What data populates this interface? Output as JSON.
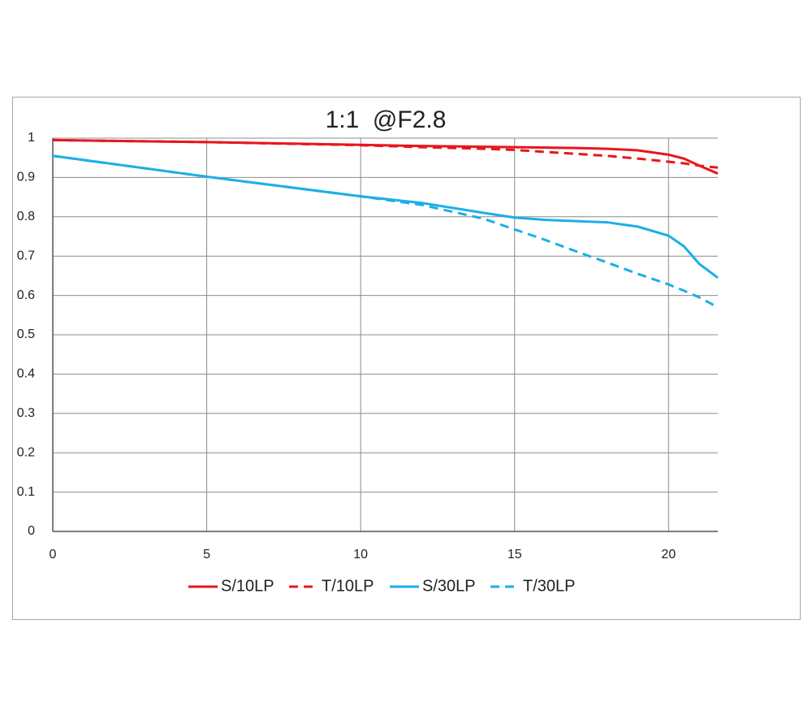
{
  "chart_data": {
    "type": "line",
    "title": "1:1  @F2.8",
    "x": [
      0,
      5,
      10,
      12,
      14,
      15,
      16,
      17,
      18,
      19,
      20,
      20.5,
      21,
      21.6
    ],
    "series": [
      {
        "name": "S/10LP",
        "color": "#e8161e",
        "dashed": false,
        "values": [
          0.995,
          0.99,
          0.983,
          0.98,
          0.978,
          0.977,
          0.976,
          0.975,
          0.973,
          0.969,
          0.958,
          0.948,
          0.93,
          0.91
        ]
      },
      {
        "name": "T/10LP",
        "color": "#e8161e",
        "dashed": true,
        "values": [
          0.995,
          0.99,
          0.982,
          0.977,
          0.973,
          0.97,
          0.965,
          0.96,
          0.955,
          0.948,
          0.94,
          0.936,
          0.93,
          0.925
        ]
      },
      {
        "name": "S/30LP",
        "color": "#1cafe6",
        "dashed": false,
        "values": [
          0.955,
          0.902,
          0.852,
          0.835,
          0.81,
          0.798,
          0.792,
          0.789,
          0.786,
          0.775,
          0.752,
          0.725,
          0.68,
          0.645
        ]
      },
      {
        "name": "T/30LP",
        "color": "#1cafe6",
        "dashed": true,
        "values": [
          0.955,
          0.902,
          0.852,
          0.83,
          0.795,
          0.768,
          0.741,
          0.712,
          0.684,
          0.655,
          0.628,
          0.612,
          0.595,
          0.57
        ]
      }
    ],
    "xlim": [
      0,
      21.6
    ],
    "xticks": [
      0,
      5,
      10,
      15,
      20
    ],
    "ylim": [
      0,
      1
    ],
    "yticks": [
      0,
      0.1,
      0.2,
      0.3,
      0.4,
      0.5,
      0.6,
      0.7,
      0.8,
      0.9,
      1
    ],
    "grid": true,
    "legend": "bottom"
  }
}
